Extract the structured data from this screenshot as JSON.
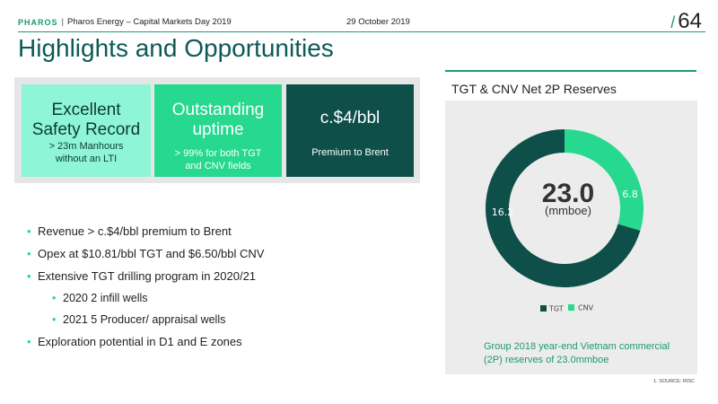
{
  "header": {
    "brand": "PHAROS",
    "separator": "|",
    "event": "Pharos Energy – Capital Markets Day 2019",
    "date": "29 October 2019",
    "page_slash": "/",
    "page_number": "64"
  },
  "title": "Highlights and Opportunities",
  "highlights": [
    {
      "headline_lines": [
        "Excellent",
        "Safety Record"
      ],
      "detail_lines": [
        "> 23m Manhours",
        "without an LTI"
      ]
    },
    {
      "headline_lines": [
        "Outstanding",
        "uptime"
      ],
      "detail_lines": [
        "> 99% for both TGT",
        "and CNV fields"
      ]
    },
    {
      "headline_lines": [
        "c.$4/bbl"
      ],
      "detail_lines": [
        "Premium to Brent"
      ]
    }
  ],
  "bullets": [
    {
      "text": "Revenue > c.$4/bbl premium to Brent",
      "level": 0
    },
    {
      "text": "Opex at $10.81/bbl TGT and $6.50/bbl CNV",
      "level": 0
    },
    {
      "text": "Extensive TGT drilling program in 2020/21",
      "level": 0
    },
    {
      "text": "2020 2 infill wells",
      "level": 1
    },
    {
      "text": "2021 5 Producer/ appraisal wells",
      "level": 1
    },
    {
      "text": "Exploration potential in D1 and E zones",
      "level": 0
    }
  ],
  "bullet_glyph": "•",
  "chart_data": {
    "type": "pie",
    "title": "TGT & CNV Net 2P Reserves",
    "center_value": "23.0",
    "center_unit": "(mmboe)",
    "categories": [
      "TGT",
      "CNV"
    ],
    "values": [
      16.2,
      6.8
    ],
    "value_labels": [
      "16.2",
      "6.8"
    ],
    "colors": [
      "#0e4f4a",
      "#26d98f"
    ],
    "legend_position": "bottom"
  },
  "caption": "Group 2018 year-end Vietnam commercial (2P) reserves of 23.0mmboe",
  "footnote": "1. SOURCE: RISC"
}
